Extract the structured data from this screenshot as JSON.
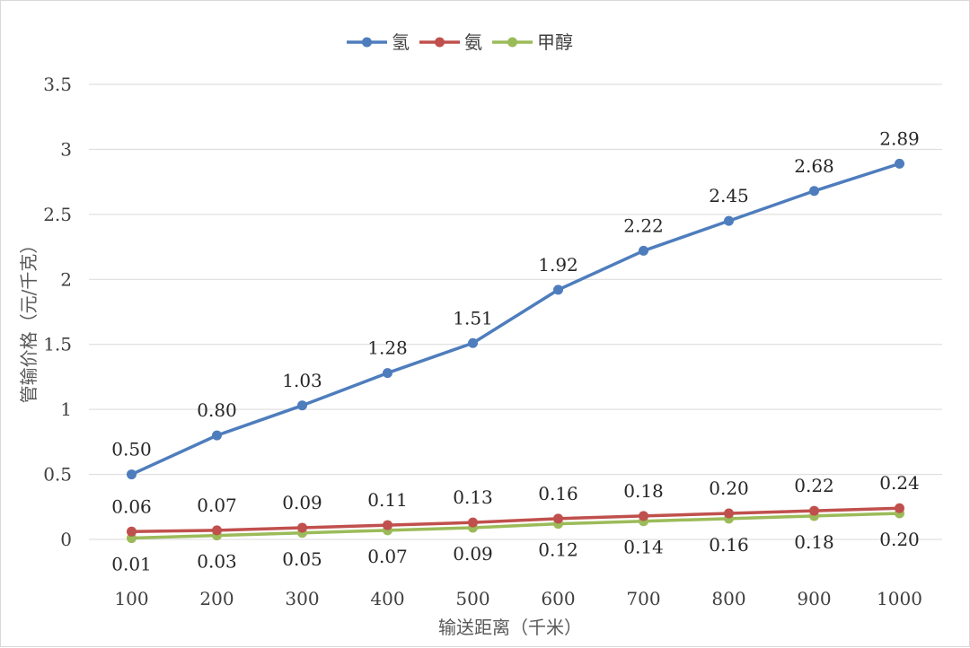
{
  "chart_data": {
    "type": "line",
    "title": "",
    "xlabel": "输送距离（千米）",
    "ylabel": "管输价格（元/千克）",
    "categories": [
      "100",
      "200",
      "300",
      "400",
      "500",
      "600",
      "700",
      "800",
      "900",
      "1000"
    ],
    "ylim": [
      0,
      3.5
    ],
    "yticks": [
      "0",
      "0.5",
      "1",
      "1.5",
      "2",
      "2.5",
      "3",
      "3.5"
    ],
    "grid": "horizontal",
    "legend_position": "top-center",
    "series": [
      {
        "name": "氢",
        "color": "#4e7dbd",
        "values": [
          0.5,
          0.8,
          1.03,
          1.28,
          1.51,
          1.92,
          2.22,
          2.45,
          2.68,
          2.89
        ],
        "labels": [
          "0.50",
          "0.80",
          "1.03",
          "1.28",
          "1.51",
          "1.92",
          "2.22",
          "2.45",
          "2.68",
          "2.89"
        ],
        "label_position": "above"
      },
      {
        "name": "氨",
        "color": "#c0504d",
        "values": [
          0.06,
          0.07,
          0.09,
          0.11,
          0.13,
          0.16,
          0.18,
          0.2,
          0.22,
          0.24
        ],
        "labels": [
          "0.06",
          "0.07",
          "0.09",
          "0.11",
          "0.13",
          "0.16",
          "0.18",
          "0.20",
          "0.22",
          "0.24"
        ],
        "label_position": "above"
      },
      {
        "name": "甲醇",
        "color": "#9bbb59",
        "values": [
          0.01,
          0.03,
          0.05,
          0.07,
          0.09,
          0.12,
          0.14,
          0.16,
          0.18,
          0.2
        ],
        "labels": [
          "0.01",
          "0.03",
          "0.05",
          "0.07",
          "0.09",
          "0.12",
          "0.14",
          "0.16",
          "0.18",
          "0.20"
        ],
        "label_position": "below"
      }
    ]
  }
}
